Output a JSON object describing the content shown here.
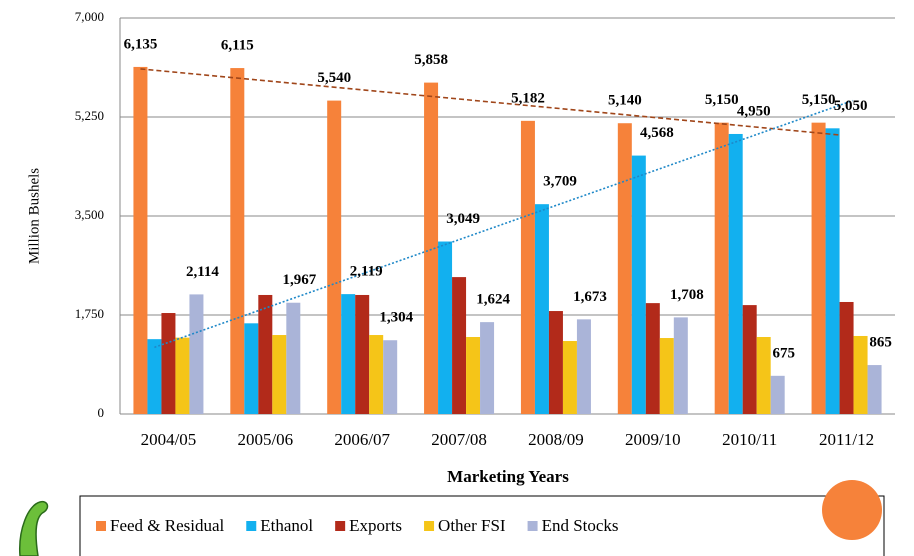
{
  "chart_data": {
    "type": "bar",
    "x_label": "Marketing Years",
    "y_label": "Million Bushels",
    "categories": [
      "2004/05",
      "2005/06",
      "2006/07",
      "2007/08",
      "2008/09",
      "2009/10",
      "2010/11",
      "2011/12"
    ],
    "series": [
      {
        "name": "Feed & Residual",
        "color": "#f6823a",
        "label_color": "#a0461a",
        "trendline": true,
        "values": [
          6135,
          6115,
          5540,
          5858,
          5182,
          5140,
          5150,
          5150
        ],
        "value_labels": [
          "6,135",
          "6,115",
          "5,540",
          "5,858",
          "5,182",
          "5,140",
          "5,150",
          "5,150"
        ]
      },
      {
        "name": "Ethanol",
        "color": "#12b0ef",
        "label_color": "#1e88c8",
        "trendline": true,
        "values": [
          1323,
          1603,
          2119,
          3049,
          3709,
          4568,
          4950,
          5050
        ],
        "value_labels": [
          null,
          null,
          "2,119",
          "3,049",
          "3,709",
          "4,568",
          "4,950",
          "5,050"
        ]
      },
      {
        "name": "Exports",
        "color": "#b22a1a",
        "label_color": "#b22a1a",
        "trendline": false,
        "values": [
          1785,
          2104,
          2104,
          2420,
          1820,
          1960,
          1925,
          1980
        ]
      },
      {
        "name": "Other FSI",
        "color": "#f5c518",
        "label_color": "#b08a00",
        "trendline": false,
        "values": [
          1350,
          1396,
          1396,
          1361,
          1290,
          1343,
          1361,
          1379
        ]
      },
      {
        "name": "End Stocks",
        "color": "#aab4d8",
        "label_color": "#1f2a5a",
        "trendline": false,
        "values": [
          2114,
          1967,
          1304,
          1624,
          1673,
          1708,
          675,
          865
        ],
        "value_labels": [
          "2,114",
          "1,967",
          "1,304",
          "1,624",
          "1,673",
          "1,708",
          "675",
          "865"
        ]
      }
    ],
    "ylim": [
      0,
      7000
    ],
    "yticks": [
      0,
      {
        "value": 1750,
        "label": "1,750"
      },
      {
        "value": 3500,
        "label": "3,500"
      },
      {
        "value": 5250,
        "label": "5,250"
      },
      {
        "value": 7000,
        "label": "7,000"
      }
    ],
    "grid": true
  }
}
